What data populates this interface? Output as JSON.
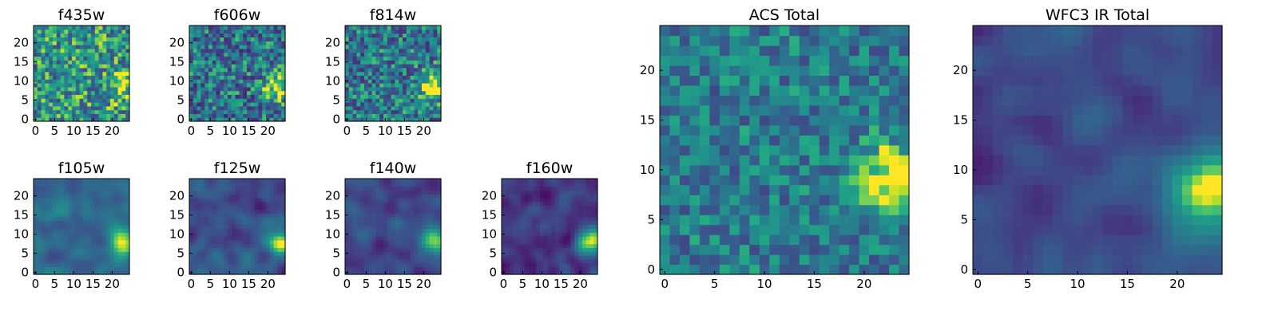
{
  "figure": {
    "background": "#ffffff",
    "colormap": "viridis"
  },
  "chart_data": [
    {
      "type": "heatmap",
      "title": "f435w",
      "grid_size": 25,
      "xlim": [
        0,
        24
      ],
      "ylim": [
        0,
        24
      ],
      "xticks": [
        0,
        5,
        10,
        15,
        20
      ],
      "yticks": [
        0,
        5,
        10,
        15,
        20
      ],
      "grid": false,
      "colorbar": false,
      "pattern": "noise",
      "base_level": 0.62,
      "noise_amplitude": 0.35,
      "blob_center": [
        23,
        9
      ],
      "blob_strength": 0.35
    },
    {
      "type": "heatmap",
      "title": "f606w",
      "grid_size": 25,
      "xlim": [
        0,
        24
      ],
      "ylim": [
        0,
        24
      ],
      "xticks": [
        0,
        5,
        10,
        15,
        20
      ],
      "yticks": [
        0,
        5,
        10,
        15,
        20
      ],
      "grid": false,
      "colorbar": false,
      "pattern": "noise",
      "base_level": 0.48,
      "noise_amplitude": 0.35,
      "blob_center": [
        23,
        9
      ],
      "blob_strength": 0.55
    },
    {
      "type": "heatmap",
      "title": "f814w",
      "grid_size": 25,
      "xlim": [
        0,
        24
      ],
      "ylim": [
        0,
        24
      ],
      "xticks": [
        0,
        5,
        10,
        15,
        20
      ],
      "yticks": [
        0,
        5,
        10,
        15,
        20
      ],
      "grid": false,
      "colorbar": false,
      "pattern": "noise",
      "base_level": 0.5,
      "noise_amplitude": 0.33,
      "blob_center": [
        23,
        9
      ],
      "blob_strength": 0.6
    },
    {
      "type": "heatmap",
      "title": "f105w",
      "grid_size": 25,
      "xlim": [
        0,
        24
      ],
      "ylim": [
        0,
        24
      ],
      "xticks": [
        0,
        5,
        10,
        15,
        20
      ],
      "yticks": [
        0,
        5,
        10,
        15,
        20
      ],
      "grid": false,
      "colorbar": false,
      "pattern": "smooth",
      "base_level": 0.42,
      "noise_amplitude": 0.18,
      "blob_center": [
        23,
        8
      ],
      "blob_strength": 0.6
    },
    {
      "type": "heatmap",
      "title": "f125w",
      "grid_size": 25,
      "xlim": [
        0,
        24
      ],
      "ylim": [
        0,
        24
      ],
      "xticks": [
        0,
        5,
        10,
        15,
        20
      ],
      "yticks": [
        0,
        5,
        10,
        15,
        20
      ],
      "grid": false,
      "colorbar": false,
      "pattern": "smooth",
      "base_level": 0.3,
      "noise_amplitude": 0.2,
      "blob_center": [
        23,
        8
      ],
      "blob_strength": 0.65
    },
    {
      "type": "heatmap",
      "title": "f140w",
      "grid_size": 25,
      "xlim": [
        0,
        24
      ],
      "ylim": [
        0,
        24
      ],
      "xticks": [
        0,
        5,
        10,
        15,
        20
      ],
      "yticks": [
        0,
        5,
        10,
        15,
        20
      ],
      "grid": false,
      "colorbar": false,
      "pattern": "smooth",
      "base_level": 0.28,
      "noise_amplitude": 0.2,
      "blob_center": [
        23,
        8
      ],
      "blob_strength": 0.7
    },
    {
      "type": "heatmap",
      "title": "f160w",
      "grid_size": 25,
      "xlim": [
        0,
        24
      ],
      "ylim": [
        0,
        24
      ],
      "xticks": [
        0,
        5,
        10,
        15,
        20
      ],
      "yticks": [
        0,
        5,
        10,
        15,
        20
      ],
      "grid": false,
      "colorbar": false,
      "pattern": "smooth",
      "base_level": 0.22,
      "noise_amplitude": 0.2,
      "blob_center": [
        23,
        8
      ],
      "blob_strength": 0.78
    },
    {
      "type": "heatmap",
      "title": "ACS Total",
      "grid_size": 25,
      "xlim": [
        0,
        24
      ],
      "ylim": [
        0,
        24
      ],
      "xticks": [
        0,
        5,
        10,
        15,
        20
      ],
      "yticks": [
        0,
        5,
        10,
        15,
        20
      ],
      "grid": false,
      "colorbar": false,
      "pattern": "noise",
      "base_level": 0.52,
      "noise_amplitude": 0.25,
      "blob_center": [
        23,
        9
      ],
      "blob_strength": 0.5
    },
    {
      "type": "heatmap",
      "title": "WFC3 IR Total",
      "grid_size": 25,
      "xlim": [
        0,
        24
      ],
      "ylim": [
        0,
        24
      ],
      "xticks": [
        0,
        5,
        10,
        15,
        20
      ],
      "yticks": [
        0,
        5,
        10,
        15,
        20
      ],
      "grid": false,
      "colorbar": false,
      "pattern": "smooth",
      "base_level": 0.28,
      "noise_amplitude": 0.15,
      "blob_center": [
        23,
        8
      ],
      "blob_strength": 0.72
    }
  ]
}
